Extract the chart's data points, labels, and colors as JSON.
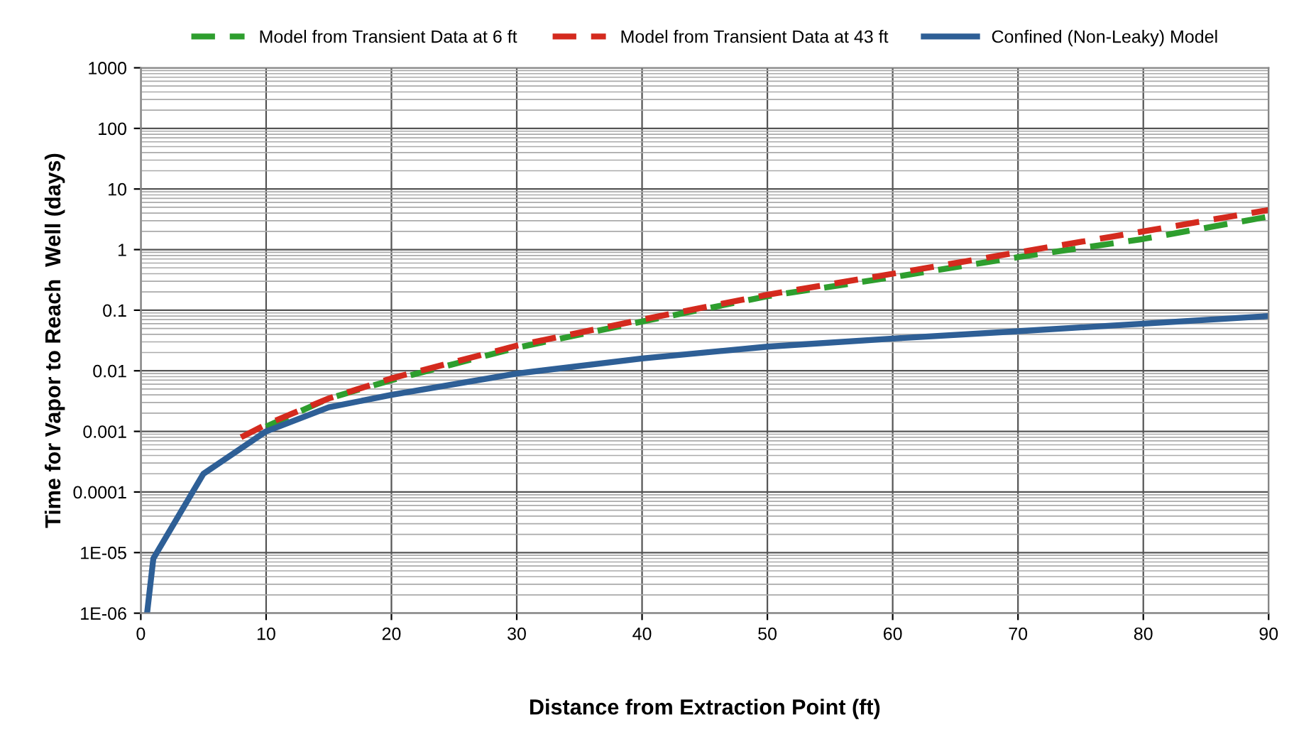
{
  "chart_data": {
    "type": "line",
    "xlabel": "Distance from Extraction Point (ft)",
    "ylabel": "Time for Vapor to Reach  Well (days)",
    "log": "y",
    "xlim": [
      0,
      90
    ],
    "ylim": [
      1e-06,
      1000
    ],
    "xticks": [
      0,
      10,
      20,
      30,
      40,
      50,
      60,
      70,
      80,
      90
    ],
    "yticks": [
      {
        "value": 1e-06,
        "label": "1E-06"
      },
      {
        "value": 1e-05,
        "label": "1E-05"
      },
      0.0001,
      0.001,
      0.01,
      0.1,
      1,
      10,
      100,
      1000
    ],
    "grid": true,
    "legend": "top",
    "line_style": "solid",
    "series": [
      {
        "name": "Model from Transient Data at 6 ft",
        "color": "#2e9e2e",
        "line_style": "dashed",
        "x": [
          10,
          15,
          20,
          30,
          40,
          50,
          60,
          70,
          80,
          90
        ],
        "values": [
          0.0012,
          0.0035,
          0.007,
          0.024,
          0.065,
          0.17,
          0.35,
          0.75,
          1.5,
          3.5
        ]
      },
      {
        "name": "Model from Transient Data at 43 ft",
        "color": "#d42a1e",
        "line_style": "dashed",
        "x": [
          8,
          10,
          15,
          20,
          30,
          40,
          50,
          60,
          70,
          80,
          90
        ],
        "values": [
          0.0008,
          0.0013,
          0.0035,
          0.0075,
          0.026,
          0.07,
          0.18,
          0.4,
          0.9,
          2,
          4.5
        ]
      },
      {
        "name": "Confined (Non-Leaky) Model",
        "color": "#2e5f96",
        "x": [
          0.5,
          1,
          5,
          10,
          15,
          20,
          30,
          40,
          50,
          60,
          70,
          80,
          90
        ],
        "values": [
          1e-06,
          8e-06,
          0.0002,
          0.001,
          0.0025,
          0.004,
          0.009,
          0.016,
          0.025,
          0.034,
          0.045,
          0.06,
          0.08
        ]
      }
    ]
  }
}
